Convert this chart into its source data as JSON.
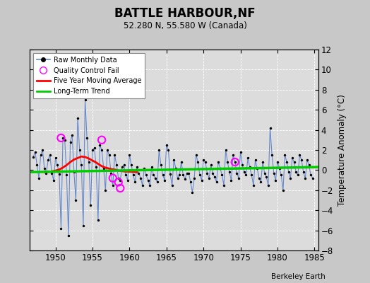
{
  "title": "BATTLE HARBOUR,NF",
  "subtitle": "52.280 N, 55.580 W (Canada)",
  "ylabel": "Temperature Anomaly (°C)",
  "watermark": "Berkeley Earth",
  "xlim": [
    1946.5,
    1985.5
  ],
  "ylim": [
    -8,
    12
  ],
  "yticks": [
    -8,
    -6,
    -4,
    -2,
    0,
    2,
    4,
    6,
    8,
    10,
    12
  ],
  "xticks": [
    1950,
    1955,
    1960,
    1965,
    1970,
    1975,
    1980,
    1985
  ],
  "bg_color": "#c8c8c8",
  "plot_bg": "#dcdcdc",
  "raw_color": "#6688cc",
  "dot_color": "#000000",
  "ma_color": "#ff0000",
  "trend_color": "#00cc00",
  "qc_color": "#ff00ff",
  "raw_data": [
    [
      1947.0,
      1.3
    ],
    [
      1947.25,
      1.8
    ],
    [
      1947.5,
      0.5
    ],
    [
      1947.75,
      -0.8
    ],
    [
      1948.0,
      1.5
    ],
    [
      1948.25,
      2.0
    ],
    [
      1948.5,
      0.2
    ],
    [
      1948.75,
      -0.3
    ],
    [
      1949.0,
      1.0
    ],
    [
      1949.25,
      1.5
    ],
    [
      1949.5,
      -0.3
    ],
    [
      1949.75,
      -1.0
    ],
    [
      1950.0,
      1.2
    ],
    [
      1950.25,
      0.5
    ],
    [
      1950.5,
      -0.4
    ],
    [
      1950.75,
      -5.8
    ],
    [
      1951.0,
      3.2
    ],
    [
      1951.25,
      3.0
    ],
    [
      1951.5,
      -0.5
    ],
    [
      1951.75,
      -6.5
    ],
    [
      1952.0,
      2.8
    ],
    [
      1952.25,
      3.5
    ],
    [
      1952.5,
      -0.2
    ],
    [
      1952.75,
      -3.0
    ],
    [
      1953.0,
      5.2
    ],
    [
      1953.25,
      2.0
    ],
    [
      1953.5,
      0.5
    ],
    [
      1953.75,
      -5.5
    ],
    [
      1954.0,
      7.0
    ],
    [
      1954.25,
      3.2
    ],
    [
      1954.5,
      0.8
    ],
    [
      1954.75,
      -3.5
    ],
    [
      1955.0,
      2.0
    ],
    [
      1955.25,
      2.2
    ],
    [
      1955.5,
      0.3
    ],
    [
      1955.75,
      -5.0
    ],
    [
      1956.0,
      2.5
    ],
    [
      1956.25,
      2.0
    ],
    [
      1956.5,
      0.2
    ],
    [
      1956.75,
      -2.0
    ],
    [
      1957.0,
      2.0
    ],
    [
      1957.25,
      1.5
    ],
    [
      1957.5,
      -0.3
    ],
    [
      1957.75,
      -1.5
    ],
    [
      1958.0,
      1.5
    ],
    [
      1958.25,
      0.5
    ],
    [
      1958.5,
      -0.8
    ],
    [
      1958.75,
      -1.0
    ],
    [
      1959.0,
      0.3
    ],
    [
      1959.25,
      0.5
    ],
    [
      1959.5,
      -0.5
    ],
    [
      1959.75,
      -1.0
    ],
    [
      1960.0,
      1.5
    ],
    [
      1960.25,
      0.5
    ],
    [
      1960.5,
      -0.5
    ],
    [
      1960.75,
      -1.2
    ],
    [
      1961.0,
      0.3
    ],
    [
      1961.25,
      -0.3
    ],
    [
      1961.5,
      -0.8
    ],
    [
      1961.75,
      -1.5
    ],
    [
      1962.0,
      0.2
    ],
    [
      1962.25,
      -0.5
    ],
    [
      1962.5,
      -1.0
    ],
    [
      1962.75,
      -1.5
    ],
    [
      1963.0,
      0.3
    ],
    [
      1963.25,
      -0.5
    ],
    [
      1963.5,
      -0.8
    ],
    [
      1963.75,
      -1.2
    ],
    [
      1964.0,
      2.0
    ],
    [
      1964.25,
      0.5
    ],
    [
      1964.5,
      -0.5
    ],
    [
      1964.75,
      -1.0
    ],
    [
      1965.0,
      2.5
    ],
    [
      1965.25,
      2.0
    ],
    [
      1965.5,
      -0.4
    ],
    [
      1965.75,
      -1.5
    ],
    [
      1966.0,
      1.0
    ],
    [
      1966.25,
      0.2
    ],
    [
      1966.5,
      -0.8
    ],
    [
      1966.75,
      -0.5
    ],
    [
      1967.0,
      0.8
    ],
    [
      1967.25,
      -0.5
    ],
    [
      1967.5,
      -0.9
    ],
    [
      1967.75,
      -0.3
    ],
    [
      1968.0,
      -0.3
    ],
    [
      1968.25,
      -1.2
    ],
    [
      1968.5,
      -2.2
    ],
    [
      1968.75,
      -0.8
    ],
    [
      1969.0,
      1.5
    ],
    [
      1969.25,
      0.8
    ],
    [
      1969.5,
      -0.5
    ],
    [
      1969.75,
      -1.0
    ],
    [
      1970.0,
      1.0
    ],
    [
      1970.25,
      0.8
    ],
    [
      1970.5,
      -0.3
    ],
    [
      1970.75,
      -0.8
    ],
    [
      1971.0,
      0.5
    ],
    [
      1971.25,
      -0.3
    ],
    [
      1971.5,
      -0.7
    ],
    [
      1971.75,
      -1.2
    ],
    [
      1972.0,
      0.8
    ],
    [
      1972.25,
      0.2
    ],
    [
      1972.5,
      -0.5
    ],
    [
      1972.75,
      -1.5
    ],
    [
      1973.0,
      2.0
    ],
    [
      1973.25,
      0.8
    ],
    [
      1973.5,
      -0.2
    ],
    [
      1973.75,
      -1.0
    ],
    [
      1974.0,
      1.5
    ],
    [
      1974.25,
      0.8
    ],
    [
      1974.5,
      -0.3
    ],
    [
      1974.75,
      -0.8
    ],
    [
      1975.0,
      1.8
    ],
    [
      1975.25,
      0.5
    ],
    [
      1975.5,
      -0.2
    ],
    [
      1975.75,
      -0.5
    ],
    [
      1976.0,
      1.2
    ],
    [
      1976.25,
      0.3
    ],
    [
      1976.5,
      -0.5
    ],
    [
      1976.75,
      -1.5
    ],
    [
      1977.0,
      1.0
    ],
    [
      1977.25,
      0.2
    ],
    [
      1977.5,
      -0.8
    ],
    [
      1977.75,
      -1.2
    ],
    [
      1978.0,
      0.8
    ],
    [
      1978.25,
      -0.3
    ],
    [
      1978.5,
      -0.7
    ],
    [
      1978.75,
      -1.5
    ],
    [
      1979.0,
      4.2
    ],
    [
      1979.25,
      1.5
    ],
    [
      1979.5,
      -0.3
    ],
    [
      1979.75,
      -1.0
    ],
    [
      1980.0,
      0.8
    ],
    [
      1980.25,
      0.2
    ],
    [
      1980.5,
      -0.5
    ],
    [
      1980.75,
      -2.0
    ],
    [
      1981.0,
      1.5
    ],
    [
      1981.25,
      0.8
    ],
    [
      1981.5,
      -0.2
    ],
    [
      1981.75,
      -0.8
    ],
    [
      1982.0,
      1.2
    ],
    [
      1982.25,
      0.8
    ],
    [
      1982.5,
      -0.2
    ],
    [
      1982.75,
      -0.5
    ],
    [
      1983.0,
      1.5
    ],
    [
      1983.25,
      1.0
    ],
    [
      1983.5,
      -0.2
    ],
    [
      1983.75,
      -0.8
    ],
    [
      1984.0,
      1.0
    ],
    [
      1984.25,
      0.5
    ],
    [
      1984.5,
      -0.5
    ],
    [
      1984.75,
      -0.8
    ]
  ],
  "qc_points": [
    [
      1950.75,
      3.2
    ],
    [
      1956.25,
      3.0
    ],
    [
      1957.75,
      -0.8
    ],
    [
      1958.5,
      -1.2
    ],
    [
      1958.75,
      -1.8
    ],
    [
      1974.25,
      0.8
    ]
  ],
  "ma_data": [
    [
      1948.5,
      -0.2
    ],
    [
      1949.0,
      -0.18
    ],
    [
      1949.5,
      -0.12
    ],
    [
      1950.0,
      -0.05
    ],
    [
      1950.5,
      0.05
    ],
    [
      1951.0,
      0.25
    ],
    [
      1951.5,
      0.5
    ],
    [
      1952.0,
      0.8
    ],
    [
      1952.5,
      1.05
    ],
    [
      1953.0,
      1.2
    ],
    [
      1953.5,
      1.35
    ],
    [
      1954.0,
      1.3
    ],
    [
      1954.5,
      1.15
    ],
    [
      1955.0,
      0.95
    ],
    [
      1955.5,
      0.75
    ],
    [
      1956.0,
      0.5
    ],
    [
      1956.5,
      0.3
    ],
    [
      1957.0,
      0.2
    ],
    [
      1957.5,
      0.1
    ],
    [
      1958.0,
      0.05
    ],
    [
      1958.5,
      -0.05
    ],
    [
      1959.0,
      -0.1
    ],
    [
      1959.5,
      -0.15
    ],
    [
      1960.0,
      -0.15
    ],
    [
      1960.5,
      -0.18
    ],
    [
      1961.0,
      -0.2
    ]
  ],
  "trend_x": [
    1946.5,
    1985.5
  ],
  "trend_y": [
    -0.2,
    0.3
  ]
}
